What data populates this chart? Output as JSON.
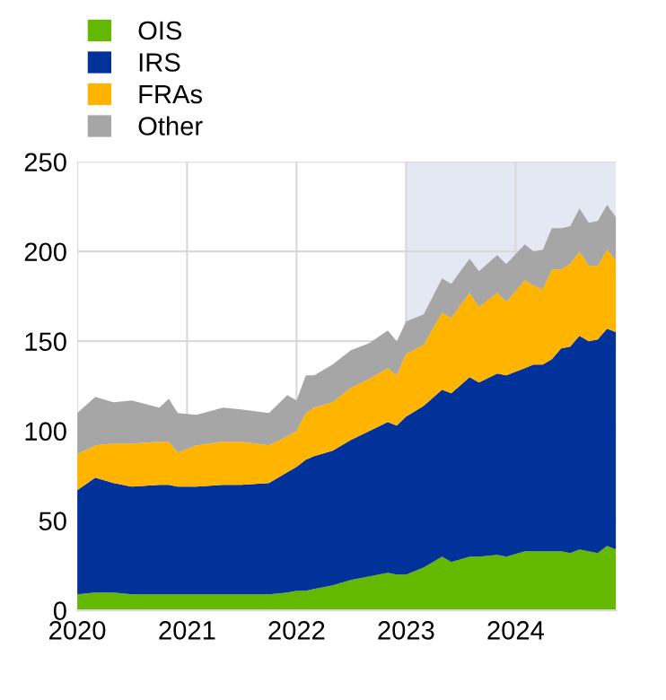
{
  "chart_data": {
    "type": "area",
    "stacked": true,
    "x": [
      "2020-01",
      "2020-03",
      "2020-05",
      "2020-07",
      "2020-10",
      "2020-11",
      "2020-12",
      "2021-02",
      "2021-05",
      "2021-07",
      "2021-10",
      "2021-12",
      "2022-01",
      "2022-02",
      "2022-03",
      "2022-05",
      "2022-07",
      "2022-09",
      "2022-11",
      "2022-12",
      "2023-01",
      "2023-03",
      "2023-05",
      "2023-06",
      "2023-08",
      "2023-09",
      "2023-11",
      "2023-12",
      "2024-02",
      "2024-03",
      "2024-04",
      "2024-05",
      "2024-06",
      "2024-07",
      "2024-08",
      "2024-09",
      "2024-10",
      "2024-11",
      "2024-12"
    ],
    "series": [
      {
        "name": "OIS",
        "color": "#65b800",
        "values": [
          9,
          10,
          10,
          9,
          9,
          9,
          9,
          9,
          9,
          9,
          9,
          10,
          11,
          11,
          12,
          14,
          17,
          19,
          21,
          20,
          20,
          24,
          30,
          27,
          30,
          30,
          31,
          30,
          33,
          33,
          33,
          33,
          33,
          32,
          34,
          33,
          32,
          36,
          34
        ]
      },
      {
        "name": "IRS",
        "color": "#003299",
        "values": [
          58,
          64,
          61,
          60,
          61,
          61,
          60,
          60,
          61,
          61,
          62,
          67,
          69,
          73,
          74,
          75,
          78,
          81,
          84,
          83,
          88,
          90,
          93,
          94,
          100,
          97,
          101,
          101,
          102,
          104,
          104,
          107,
          113,
          115,
          119,
          117,
          119,
          121,
          121
        ]
      },
      {
        "name": "FRAs",
        "color": "#ffb400",
        "values": [
          20,
          18,
          22,
          24,
          24,
          24,
          19,
          23,
          24,
          24,
          21,
          20,
          20,
          26,
          27,
          27,
          29,
          29,
          30,
          28,
          35,
          34,
          43,
          42,
          47,
          42,
          45,
          41,
          49,
          44,
          42,
          50,
          44,
          46,
          47,
          42,
          41,
          44,
          40
        ]
      },
      {
        "name": "Other",
        "color": "#a6a6a6",
        "values": [
          23,
          27,
          23,
          24,
          19,
          24,
          22,
          17,
          19,
          18,
          18,
          23,
          17,
          21,
          18,
          21,
          21,
          20,
          21,
          19,
          18,
          17,
          19,
          19,
          19,
          20,
          21,
          21,
          20,
          19,
          22,
          23,
          23,
          21,
          24,
          24,
          25,
          25,
          24
        ]
      }
    ],
    "xlim": [
      "2020-01",
      "2024-12"
    ],
    "xticks": [
      {
        "value": "2020",
        "label": "2020"
      },
      {
        "value": "2021",
        "label": "2021"
      },
      {
        "value": "2022",
        "label": "2022"
      },
      {
        "value": "2023",
        "label": "2023"
      },
      {
        "value": "2024",
        "label": "2024"
      }
    ],
    "ylim": [
      0,
      250
    ],
    "yticks": [
      0,
      50,
      100,
      150,
      200,
      250
    ],
    "bands": [
      {
        "axis": "x",
        "from": "2023-01",
        "to": "2024-12",
        "color": "#e3e8f3"
      }
    ],
    "grid": true,
    "legend": "top left"
  }
}
